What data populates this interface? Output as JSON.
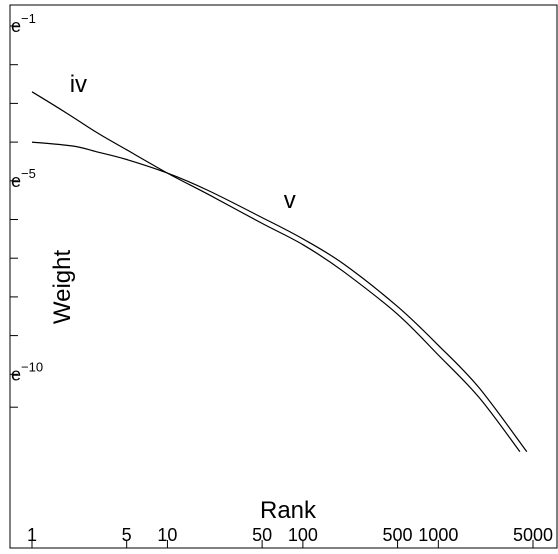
{
  "chart_data": {
    "type": "line",
    "title": "",
    "xlabel": "Rank",
    "ylabel": "Weight",
    "x_scale": "log",
    "y_scale": "log-e",
    "xlim": [
      1,
      5000
    ],
    "ylim_exponent": [
      -10.9,
      -1
    ],
    "grid": false,
    "x_ticks": [
      {
        "value": 1,
        "label": "1"
      },
      {
        "value": 5,
        "label": "5"
      },
      {
        "value": 10,
        "label": "10"
      },
      {
        "value": 50,
        "label": "50"
      },
      {
        "value": 100,
        "label": "100"
      },
      {
        "value": 500,
        "label": "500"
      },
      {
        "value": 1000,
        "label": "1000"
      },
      {
        "value": 5000,
        "label": "5000"
      }
    ],
    "y_tick_exponents": [
      -1,
      -2,
      -3,
      -4,
      -5,
      -6,
      -7,
      -8,
      -9,
      -10
    ],
    "y_labels": [
      {
        "base": "e",
        "exponent": "−1",
        "value": -1
      },
      {
        "base": "e",
        "exponent": "−5",
        "value": -5
      },
      {
        "base": "e",
        "exponent": "−10",
        "value": -10
      }
    ],
    "series": [
      {
        "label": "iv",
        "label_at": [
          2.2,
          -2.7
        ],
        "points": [
          [
            1,
            -2.7
          ],
          [
            1.8,
            -3.25
          ],
          [
            3,
            -3.75
          ],
          [
            5,
            -4.2
          ],
          [
            10,
            -4.8
          ],
          [
            20,
            -5.35
          ],
          [
            50,
            -6.1
          ],
          [
            100,
            -6.65
          ],
          [
            200,
            -7.35
          ],
          [
            500,
            -8.45
          ],
          [
            1000,
            -9.5
          ],
          [
            2000,
            -10.6
          ],
          [
            4000,
            -12.0
          ]
        ]
      },
      {
        "label": "v",
        "label_at": [
          80,
          -5.7
        ],
        "points": [
          [
            1,
            -4.0
          ],
          [
            2,
            -4.1
          ],
          [
            3,
            -4.25
          ],
          [
            5,
            -4.45
          ],
          [
            10,
            -4.8
          ],
          [
            20,
            -5.25
          ],
          [
            50,
            -5.95
          ],
          [
            100,
            -6.5
          ],
          [
            200,
            -7.15
          ],
          [
            500,
            -8.25
          ],
          [
            1000,
            -9.25
          ],
          [
            2000,
            -10.35
          ],
          [
            4500,
            -12.0
          ]
        ]
      }
    ]
  }
}
